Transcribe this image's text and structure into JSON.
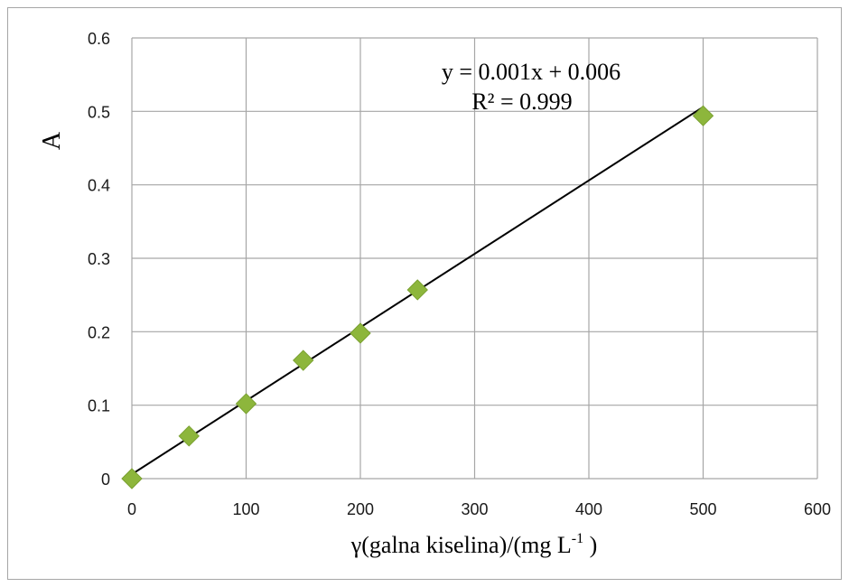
{
  "chart_data": {
    "type": "scatter",
    "ylabel": "A",
    "xlabel_main": "γ(galna kiselina)/(mg  L",
    "xlabel_sup": "-1",
    "xlabel_end": " )",
    "xlim": [
      0,
      600
    ],
    "ylim": [
      0,
      0.6
    ],
    "x_ticks": [
      "0",
      "100",
      "200",
      "300",
      "400",
      "500",
      "600"
    ],
    "y_ticks": [
      "0",
      "0.1",
      "0.2",
      "0.3",
      "0.4",
      "0.5",
      "0.6"
    ],
    "grid": true,
    "series": [
      {
        "marker_color": "#8db63c",
        "points": [
          {
            "x": 0,
            "y": 0.0
          },
          {
            "x": 50,
            "y": 0.058
          },
          {
            "x": 100,
            "y": 0.102
          },
          {
            "x": 150,
            "y": 0.161
          },
          {
            "x": 200,
            "y": 0.198
          },
          {
            "x": 250,
            "y": 0.257
          },
          {
            "x": 500,
            "y": 0.494
          }
        ]
      }
    ],
    "trendline": {
      "slope": 0.001,
      "intercept": 0.006,
      "x_range": [
        0,
        500
      ],
      "color": "#000000",
      "equation": "y = 0.001x + 0.006",
      "r_squared": "R² = 0.999"
    },
    "grid_color": "#a6a6a6"
  }
}
